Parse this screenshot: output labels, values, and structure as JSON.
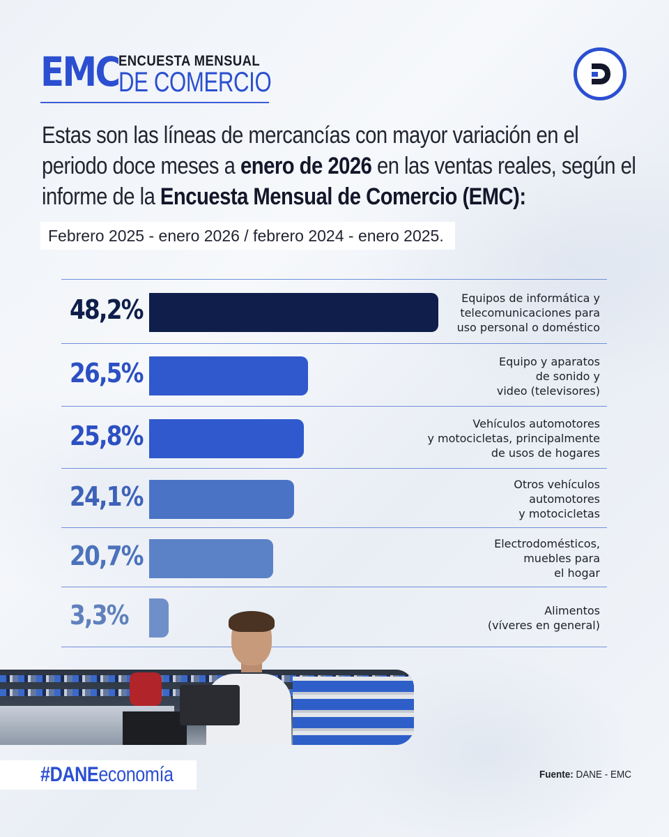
{
  "header": {
    "logo_short": "EMC",
    "logo_line1": "ENCUESTA MENSUAL",
    "logo_line2": "DE COMERCIO",
    "brand_icon": "dane-d-logo-icon"
  },
  "intro": {
    "part1": "Estas son las líneas de mercancías con mayor variación en el periodo doce meses a ",
    "bold1": "enero de 2026",
    "part2": " en las ventas reales, según el informe de la ",
    "bold2": "Encuesta Mensual de Comercio (EMC):"
  },
  "period_label": "Febrero 2025 - enero 2026 / febrero 2024 - enero 2025.",
  "chart_data": {
    "type": "bar",
    "orientation": "horizontal",
    "categories": [
      [
        "Equipos de informática y",
        "telecomunicaciones para",
        "uso personal o doméstico"
      ],
      [
        "Equipo y aparatos",
        "de sonido y",
        "video (televisores)"
      ],
      [
        "Vehículos automotores",
        "y motocicletas, principalmente",
        "de usos de hogares"
      ],
      [
        "Otros vehículos",
        "automotores",
        "y motocicletas"
      ],
      [
        "Electrodomésticos,",
        "muebles para",
        "el hogar"
      ],
      [
        "Alimentos",
        "(víveres en general)"
      ]
    ],
    "values": [
      48.2,
      26.5,
      25.8,
      24.1,
      20.7,
      3.3
    ],
    "value_labels": [
      "48,2%",
      "26,5%",
      "25,8%",
      "24,1%",
      "20,7%",
      "3,3%"
    ],
    "colors": [
      "#0f1e4a",
      "#2f59cc",
      "#2f59cc",
      "#4a73c6",
      "#5b82c7",
      "#6f8fc9"
    ],
    "label_colors": [
      "#0f1e4a",
      "#2c50c2",
      "#2c50c2",
      "#3d62b8",
      "#4c72bb",
      "#6080bd"
    ],
    "xlim": [
      0,
      48.2
    ],
    "grid": false,
    "legend": "none"
  },
  "footer": {
    "hashtag_a": "#DANE",
    "hashtag_b": "economía",
    "source_label": "Fuente:",
    "source_value": " DANE - EMC"
  }
}
